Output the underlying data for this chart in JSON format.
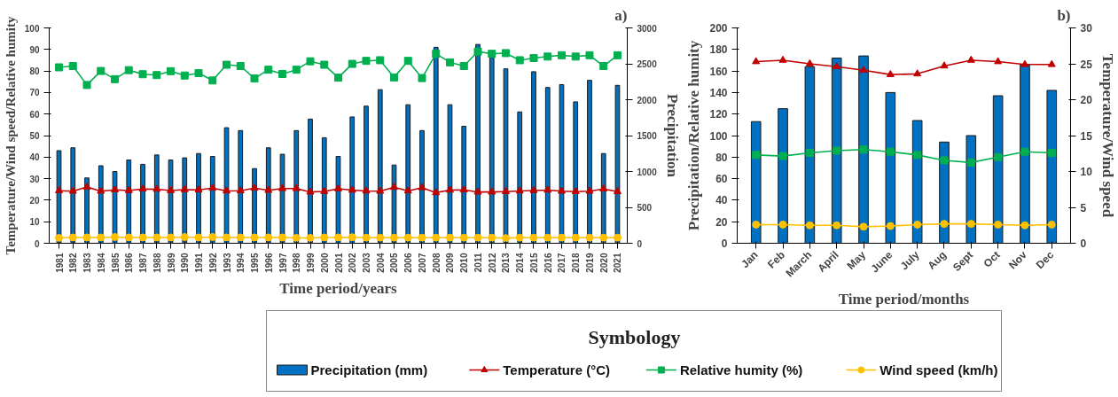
{
  "chart_data": [
    {
      "type": "bar",
      "title": "a)",
      "xlabel": "Time period/years",
      "ylabel": "Temperature/Wind speed/Relative humity",
      "y2label": "Precipitation",
      "legend_title": "Symbology",
      "legend": "bottom",
      "grid": false,
      "categories": [
        "1981",
        "1982",
        "1983",
        "1984",
        "1985",
        "1986",
        "1987",
        "1988",
        "1989",
        "1990",
        "1991",
        "1992",
        "1993",
        "1994",
        "1995",
        "1996",
        "1997",
        "1998",
        "1999",
        "2000",
        "2001",
        "2002",
        "2003",
        "2004",
        "2005",
        "2006",
        "2007",
        "2008",
        "2009",
        "2010",
        "2011",
        "2012",
        "2013",
        "2014",
        "2015",
        "2016",
        "2017",
        "2018",
        "2019",
        "2020",
        "2021"
      ],
      "ylim": [
        0,
        100
      ],
      "yticks": [
        0,
        10,
        20,
        30,
        40,
        50,
        60,
        70,
        80,
        90,
        100
      ],
      "y2lim": [
        0,
        3000
      ],
      "y2ticks": [
        0,
        500,
        1000,
        1500,
        2000,
        2500,
        3000
      ],
      "series": [
        {
          "name": "Precipitation (mm)",
          "axis": "y2",
          "color": "#0070c0",
          "values": [
            1290,
            1330,
            910,
            1080,
            1000,
            1160,
            1100,
            1230,
            1160,
            1190,
            1250,
            1210,
            1610,
            1570,
            1040,
            1330,
            1240,
            1570,
            1730,
            1470,
            1210,
            1760,
            1910,
            2140,
            1090,
            1930,
            1570,
            2730,
            1930,
            1630,
            2770,
            2590,
            2430,
            1830,
            2390,
            2170,
            2210,
            1970,
            2270,
            1250,
            2200
          ]
        },
        {
          "name": "Temperature (°C)",
          "type": "line",
          "marker": "triangle",
          "color": "#c00000",
          "values": [
            24.4,
            24.2,
            26.1,
            24.2,
            24.8,
            24.5,
            25.2,
            25.1,
            24.5,
            24.9,
            24.8,
            25.6,
            24.3,
            24.4,
            25.6,
            24.6,
            25.4,
            25.4,
            23.8,
            24.1,
            25.3,
            24.7,
            24.3,
            24.2,
            26.0,
            24.3,
            25.8,
            23.5,
            24.7,
            24.8,
            23.8,
            23.8,
            24.0,
            24.3,
            24.5,
            24.7,
            24.2,
            24.0,
            24.2,
            25.2,
            24.0
          ]
        },
        {
          "name": "Relative humity (%)",
          "type": "line",
          "marker": "square",
          "color": "#00b050",
          "values": [
            81.7,
            82.3,
            73.5,
            80.0,
            76.2,
            80.4,
            78.5,
            78.1,
            79.9,
            77.9,
            79.0,
            75.6,
            82.9,
            82.3,
            76.5,
            80.6,
            78.6,
            80.6,
            84.5,
            82.9,
            76.9,
            83.3,
            84.7,
            85.0,
            77.0,
            84.7,
            76.7,
            88.0,
            84.0,
            82.3,
            89.0,
            88.0,
            88.3,
            85.0,
            86.0,
            86.7,
            87.3,
            86.7,
            87.3,
            82.3,
            87.3
          ]
        },
        {
          "name": "Wind speed (km/h)",
          "type": "line",
          "marker": "circle",
          "color": "#ffc000",
          "values": [
            2.5,
            2.7,
            2.7,
            2.7,
            2.9,
            2.7,
            2.7,
            2.7,
            2.7,
            2.9,
            2.7,
            2.9,
            2.7,
            2.7,
            2.7,
            2.7,
            2.7,
            2.5,
            2.5,
            2.7,
            2.7,
            2.8,
            2.6,
            2.6,
            2.6,
            2.6,
            2.6,
            2.6,
            2.6,
            2.6,
            2.6,
            2.6,
            2.4,
            2.6,
            2.6,
            2.6,
            2.6,
            2.6,
            2.6,
            2.6,
            2.6
          ]
        }
      ]
    },
    {
      "type": "bar",
      "title": "b)",
      "xlabel": "Time period/months",
      "ylabel": "Precipitation/Relative humity",
      "y2label": "Temperature/Wind speed",
      "grid": false,
      "categories": [
        "Jan",
        "Feb",
        "March",
        "April",
        "May",
        "June",
        "July",
        "Aug",
        "Sept",
        "Oct",
        "Nov",
        "Dec"
      ],
      "ylim": [
        0,
        200
      ],
      "yticks": [
        0,
        20,
        40,
        60,
        80,
        100,
        120,
        140,
        160,
        180,
        200
      ],
      "y2lim": [
        0,
        30
      ],
      "y2ticks": [
        0,
        5,
        10,
        15,
        20,
        25,
        30
      ],
      "series": [
        {
          "color": "#0070c0",
          "values": [
            113,
            125,
            164,
            172,
            174,
            140,
            114,
            94,
            100,
            137,
            166,
            142
          ]
        },
        {
          "type": "line",
          "marker": "triangle",
          "axis": "y2",
          "color": "#c00000",
          "values": [
            25.3,
            25.5,
            25.0,
            24.6,
            24.1,
            23.5,
            23.6,
            24.7,
            25.5,
            25.3,
            24.9,
            24.9
          ]
        },
        {
          "type": "line",
          "marker": "square",
          "color": "#00b050",
          "values": [
            82,
            81,
            84,
            86,
            87,
            85,
            82,
            77,
            75,
            80,
            85,
            84
          ]
        },
        {
          "type": "line",
          "marker": "circle",
          "axis": "y2",
          "color": "#ffc000",
          "values": [
            2.6,
            2.6,
            2.5,
            2.5,
            2.3,
            2.4,
            2.6,
            2.7,
            2.7,
            2.6,
            2.5,
            2.6
          ]
        }
      ]
    }
  ]
}
